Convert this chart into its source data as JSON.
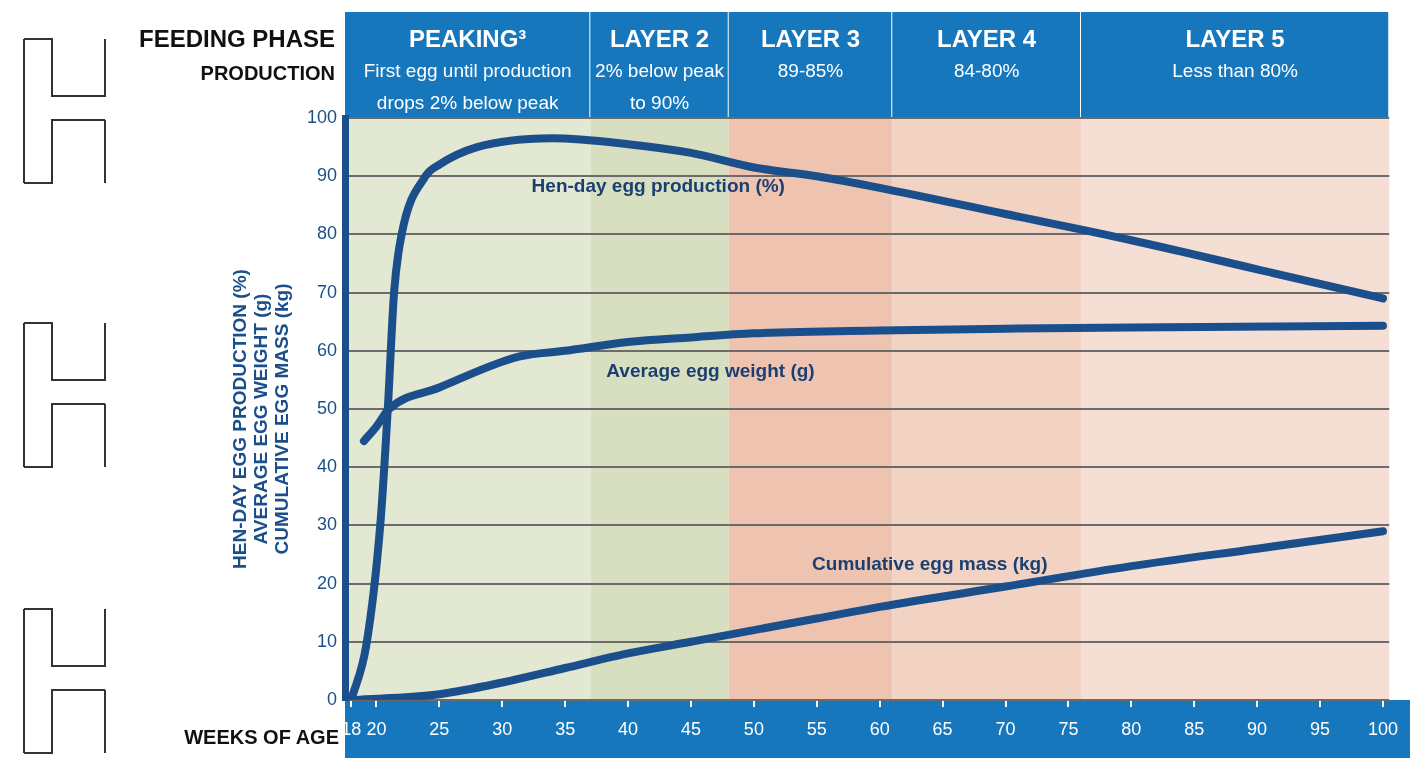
{
  "chart_data": {
    "type": "line",
    "xlabel": "WEEKS OF AGE",
    "ylabel": "HEN-DAY EGG PRODUCTION (%)\nAVERAGE EGG WEIGHT (g)\nCUMULATIVE EGG MASS (kg)",
    "xlim": [
      17.5,
      100.5
    ],
    "xticks": [
      18,
      20,
      25,
      30,
      35,
      40,
      45,
      50,
      55,
      60,
      65,
      70,
      75,
      80,
      85,
      90,
      95,
      100
    ],
    "ylim": [
      0,
      100
    ],
    "yticks": [
      0,
      10,
      20,
      30,
      40,
      50,
      60,
      70,
      80,
      90,
      100
    ],
    "grid": "y",
    "legend": false,
    "marker": "none",
    "line_style": "solid",
    "series": [
      {
        "name": "Hen-day egg production (%)",
        "color": "#1b4f8c",
        "x": [
          18,
          19.2,
          20.3,
          20.9,
          21.4,
          22,
          23.9,
          25,
          28,
          34,
          40,
          45,
          50,
          55,
          60,
          70,
          80,
          90,
          100
        ],
        "values": [
          0,
          9.5,
          30,
          50,
          70,
          80,
          90,
          92,
          95,
          96.5,
          95.5,
          94,
          91.5,
          90,
          88,
          83.5,
          79,
          74,
          69
        ]
      },
      {
        "name": "Average egg weight (g)",
        "color": "#1b4f8c",
        "x": [
          19,
          20,
          21,
          25,
          31.3,
          35,
          40,
          45,
          50,
          60,
          70,
          80,
          100
        ],
        "values": [
          44.5,
          47,
          50,
          53.7,
          59,
          60,
          61.5,
          62.3,
          63,
          63.5,
          63.8,
          64,
          64.3
        ]
      },
      {
        "name": "Cumulative egg mass (kg)",
        "color": "#1b4f8c",
        "x": [
          18,
          20,
          25,
          30,
          35,
          40,
          45,
          50,
          55,
          60,
          70,
          80,
          90,
          100
        ],
        "values": [
          0,
          0.2,
          1,
          3,
          5.5,
          8,
          10,
          12,
          14,
          16,
          19.5,
          23,
          26,
          29
        ]
      }
    ],
    "bands": [
      {
        "axis": "x",
        "from": 17.5,
        "to": 37,
        "label": "PEAKING³\nFirst egg until production\ndrops 2% below peak",
        "color": "#e2e8d2"
      },
      {
        "axis": "x",
        "from": 37,
        "to": 48,
        "label": "LAYER 2\n2% below peak\nto 90%",
        "color": "#d8dfc1"
      },
      {
        "axis": "x",
        "from": 48,
        "to": 61,
        "label": "LAYER 3\n89-85%",
        "color": "#eec4b1"
      },
      {
        "axis": "x",
        "from": 61,
        "to": 76,
        "label": "LAYER 4\n84-80%",
        "color": "#f2d2c3"
      },
      {
        "axis": "x",
        "from": 76,
        "to": 100.5,
        "label": "LAYER 5\nLess than 80%",
        "color": "#f5dfd4"
      }
    ],
    "annotations": [
      "FEEDING PHASE",
      "PRODUCTION"
    ]
  }
}
